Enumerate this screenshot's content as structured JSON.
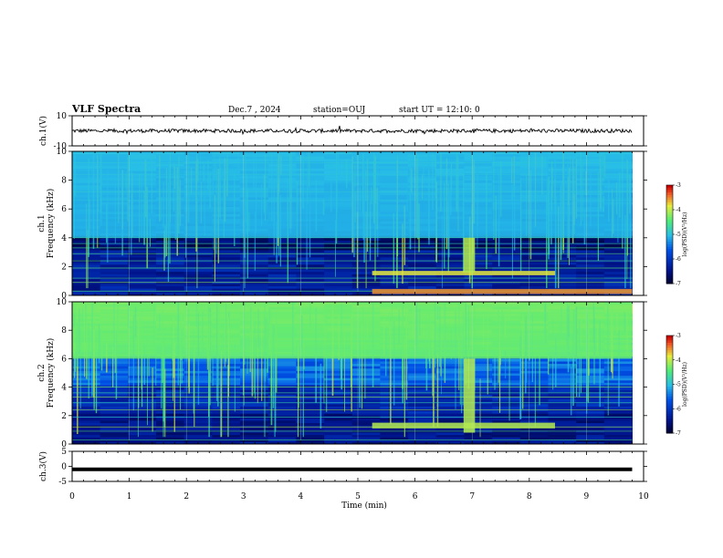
{
  "header": {
    "title": "VLF Spectra",
    "date": "Dec.7 , 2024",
    "station": "station=OUJ",
    "start": "start UT =   12:10: 0"
  },
  "colors": {
    "background": "#ffffff",
    "axis": "#000000",
    "spectrogram_dark": "#000033",
    "spectrogram_blue": "#0033cc",
    "spectrogram_cyan": "#33ccdd",
    "spectrogram_green": "#55ee55",
    "spectrogram_yellow": "#eeee44",
    "spectrogram_red": "#ee3333"
  },
  "chart_data": [
    {
      "type": "line",
      "panel": "ch1-waveform",
      "ylabel": "ch.1(V)",
      "ylim": [
        -10,
        10
      ],
      "yticks": [
        "10",
        "-10"
      ],
      "xlim": [
        0,
        10
      ],
      "series": [
        {
          "x_range": [
            0,
            9.8
          ],
          "approx_value": 0,
          "note_range": [
            -2,
            2
          ]
        }
      ]
    },
    {
      "type": "heatmap",
      "panel": "ch1-spectrogram",
      "ylabel": "Frequency (kHz)",
      "channel": "ch.1",
      "ylim": [
        0,
        10
      ],
      "yticks": [
        "0",
        "2",
        "4",
        "6",
        "8",
        "10"
      ],
      "xlim": [
        0,
        10
      ],
      "data_extent_min": [
        0,
        9.8
      ],
      "colorbar": {
        "label": "log(PSD)(V²/Hz)",
        "range": [
          -7,
          -3
        ],
        "ticks": [
          "-3",
          "-4",
          "-5",
          "-6",
          "-7"
        ]
      },
      "features": [
        {
          "desc": "broadband emission above ~4 kHz",
          "t": [
            0,
            9.8
          ],
          "f": [
            4,
            10
          ],
          "level": -5
        },
        {
          "desc": "enhanced band",
          "t": [
            5.25,
            8.45
          ],
          "f": [
            1.4,
            1.7
          ],
          "level": -3.8
        },
        {
          "desc": "intense low band",
          "t": [
            5.25,
            9.8
          ],
          "f": [
            0.1,
            0.45
          ],
          "level": -3.5
        },
        {
          "desc": "broadband burst",
          "t": [
            6.85,
            7.05
          ],
          "f": [
            1.6,
            4.0
          ],
          "level": -4
        }
      ]
    },
    {
      "type": "heatmap",
      "panel": "ch2-spectrogram",
      "ylabel": "Frequency (kHz)",
      "channel": "ch.2",
      "ylim": [
        0,
        10
      ],
      "yticks": [
        "0",
        "2",
        "4",
        "6",
        "8",
        "10"
      ],
      "xlim": [
        0,
        10
      ],
      "data_extent_min": [
        0,
        9.8
      ],
      "colorbar": {
        "label": "log(PSD)(V²/Hz)",
        "range": [
          -7,
          -3
        ],
        "ticks": [
          "-3",
          "-4",
          "-5",
          "-6",
          "-7"
        ]
      },
      "features": [
        {
          "desc": "strong emission above ~6 kHz",
          "t": [
            0,
            9.8
          ],
          "f": [
            6,
            10
          ],
          "level": -4.3
        },
        {
          "desc": "enhanced band",
          "t": [
            5.25,
            8.45
          ],
          "f": [
            1.1,
            1.5
          ],
          "level": -4
        },
        {
          "desc": "broadband burst",
          "t": [
            6.85,
            7.05
          ],
          "f": [
            0.8,
            6.0
          ],
          "level": -4
        }
      ]
    },
    {
      "type": "line",
      "panel": "ch3-waveform",
      "ylabel": "ch.3(V)",
      "ylim": [
        -5,
        5
      ],
      "yticks": [
        "5",
        "0",
        "-5"
      ],
      "xlim": [
        0,
        10
      ],
      "xlabel": "Time (min)",
      "xticks": [
        "0",
        "1",
        "2",
        "3",
        "4",
        "5",
        "6",
        "7",
        "8",
        "9",
        "10"
      ],
      "series": [
        {
          "x_range": [
            0,
            9.8
          ],
          "approx_value": -1
        }
      ]
    }
  ]
}
